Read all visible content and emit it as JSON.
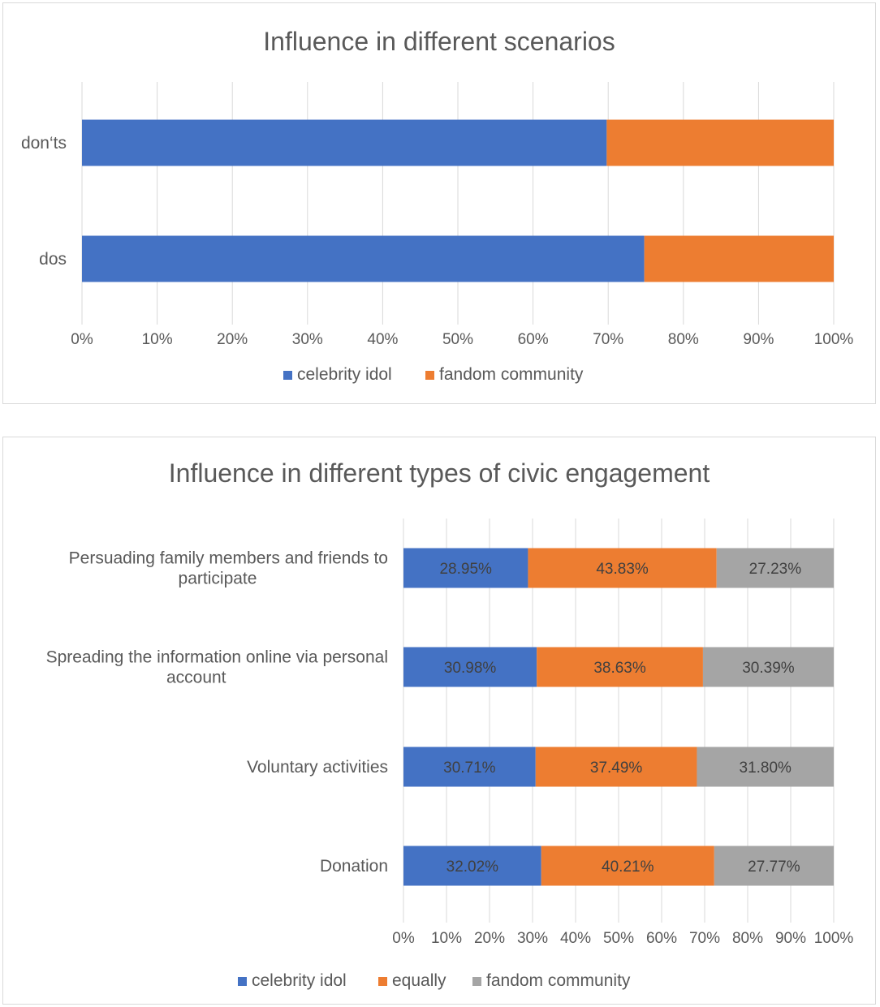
{
  "chart_data": [
    {
      "type": "bar",
      "orientation": "horizontal",
      "stacked": "100%",
      "title": "Influence in different scenarios",
      "categories": [
        "don‘ts",
        "dos"
      ],
      "series": [
        {
          "name": "celebrity idol",
          "color": "#4472C4",
          "values": [
            69.8,
            74.8
          ]
        },
        {
          "name": "fandom community",
          "color": "#ED7D31",
          "values": [
            30.2,
            25.2
          ]
        }
      ],
      "xticks": [
        "0%",
        "10%",
        "20%",
        "30%",
        "40%",
        "50%",
        "60%",
        "70%",
        "80%",
        "90%",
        "100%"
      ],
      "xlim": [
        0,
        100
      ],
      "grid": true,
      "legend": "bottom"
    },
    {
      "type": "bar",
      "orientation": "horizontal",
      "stacked": "100%",
      "title": "Influence in different types of civic engagement",
      "categories": [
        [
          "Persuading family members and friends to",
          "participate"
        ],
        [
          "Spreading the information online via personal",
          "account"
        ],
        [
          "Voluntary activities"
        ],
        [
          "Donation"
        ]
      ],
      "series": [
        {
          "name": "celebrity idol",
          "color": "#4472C4",
          "values": [
            28.95,
            30.98,
            30.71,
            32.02
          ],
          "labels": [
            "28.95%",
            "30.98%",
            "30.71%",
            "32.02%"
          ]
        },
        {
          "name": "equally",
          "color": "#ED7D31",
          "values": [
            43.83,
            38.63,
            37.49,
            40.21
          ],
          "labels": [
            "43.83%",
            "38.63%",
            "37.49%",
            "40.21%"
          ]
        },
        {
          "name": "fandom community",
          "color": "#A5A5A5",
          "values": [
            27.23,
            30.39,
            31.8,
            27.77
          ],
          "labels": [
            "27.23%",
            "30.39%",
            "31.80%",
            "27.77%"
          ]
        }
      ],
      "xticks": [
        "0%",
        "10%",
        "20%",
        "30%",
        "40%",
        "50%",
        "60%",
        "70%",
        "80%",
        "90%",
        "100%"
      ],
      "xlim": [
        0,
        100
      ],
      "grid": true,
      "legend": "bottom"
    }
  ]
}
